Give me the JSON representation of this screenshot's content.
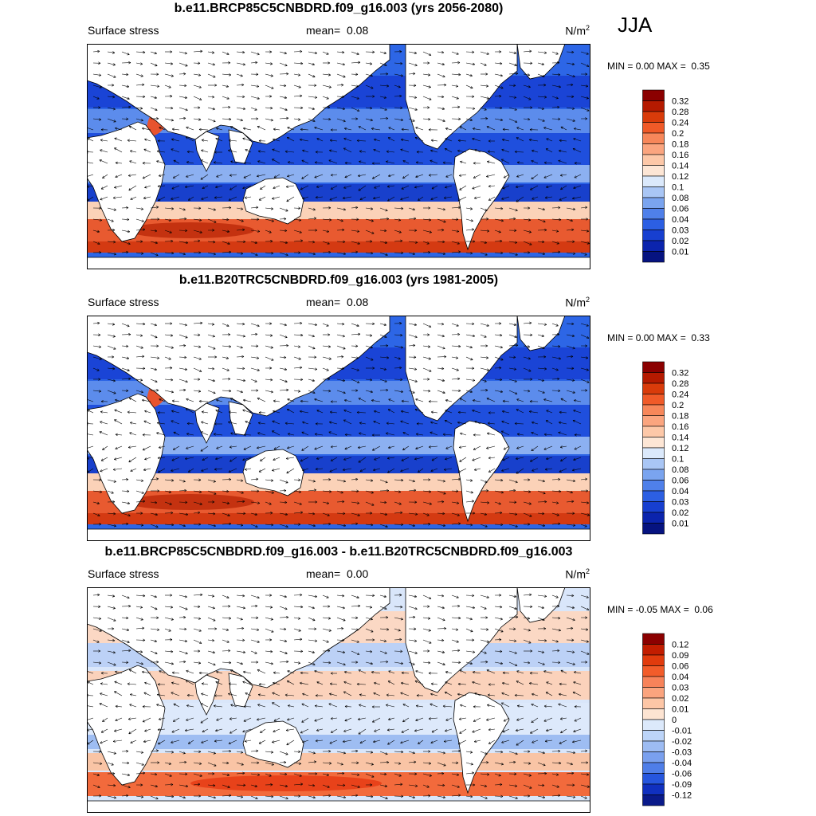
{
  "season": "JJA",
  "colors": {
    "ocean_base": "#1f5be8",
    "land": "#ffffff",
    "coast": "#000000",
    "warm": "#e8462a",
    "cool": "#1a3fd6"
  },
  "panels": [
    {
      "title": "b.e11.BRCP85C5CNBDRD.f09_g16.003 (yrs 2056-2080)",
      "variable": "Surface stress",
      "mean_label": "mean=",
      "mean_value": "0.08",
      "units": "N/m",
      "units_exp": "2",
      "min_label": "MIN =",
      "min_value": "0.00",
      "max_label": "MAX =",
      "max_value": "0.35",
      "colorbar_labels": [
        "0.32",
        "0.28",
        "0.24",
        "0.2",
        "0.18",
        "0.16",
        "0.14",
        "0.12",
        "0.1",
        "0.08",
        "0.06",
        "0.04",
        "0.03",
        "0.02",
        "0.01"
      ],
      "colorbar_colors": [
        "#8b0000",
        "#b51a00",
        "#d93b0a",
        "#f05a28",
        "#f7875a",
        "#fba57f",
        "#fdc8a8",
        "#fde6d5",
        "#dbe9fb",
        "#a9c6f5",
        "#7aa4ef",
        "#4f80ea",
        "#2c5fe3",
        "#173fd0",
        "#0b24ad",
        "#061380"
      ]
    },
    {
      "title": "b.e11.B20TRC5CNBDRD.f09_g16.003 (yrs 1981-2005)",
      "variable": "Surface stress",
      "mean_label": "mean=",
      "mean_value": "0.08",
      "units": "N/m",
      "units_exp": "2",
      "min_label": "MIN =",
      "min_value": "0.00",
      "max_label": "MAX =",
      "max_value": "0.33",
      "colorbar_labels": [
        "0.32",
        "0.28",
        "0.24",
        "0.2",
        "0.18",
        "0.16",
        "0.14",
        "0.12",
        "0.1",
        "0.08",
        "0.06",
        "0.04",
        "0.03",
        "0.02",
        "0.01"
      ],
      "colorbar_colors": [
        "#8b0000",
        "#b51a00",
        "#d93b0a",
        "#f05a28",
        "#f7875a",
        "#fba57f",
        "#fdc8a8",
        "#fde6d5",
        "#dbe9fb",
        "#a9c6f5",
        "#7aa4ef",
        "#4f80ea",
        "#2c5fe3",
        "#173fd0",
        "#0b24ad",
        "#061380"
      ]
    },
    {
      "title": "b.e11.BRCP85C5CNBDRD.f09_g16.003 - b.e11.B20TRC5CNBDRD.f09_g16.003",
      "variable": "Surface stress",
      "mean_label": "mean=",
      "mean_value": "0.00",
      "units": "N/m",
      "units_exp": "2",
      "min_label": "MIN =",
      "min_value": "-0.05",
      "max_label": "MAX =",
      "max_value": "0.06",
      "colorbar_labels": [
        "0.12",
        "0.09",
        "0.06",
        "0.04",
        "0.03",
        "0.02",
        "0.01",
        "0",
        "-0.01",
        "-0.02",
        "-0.03",
        "-0.04",
        "-0.06",
        "-0.09",
        "-0.12"
      ],
      "colorbar_colors": [
        "#8b0000",
        "#c21d00",
        "#e13b0d",
        "#f25c2a",
        "#f7835a",
        "#fba47e",
        "#fdc6a6",
        "#fde4d2",
        "#dce9fb",
        "#bcd4f8",
        "#9dbcf3",
        "#7aa0ee",
        "#4f7ee8",
        "#2656de",
        "#1030bf",
        "#0a1a8a"
      ]
    }
  ]
}
